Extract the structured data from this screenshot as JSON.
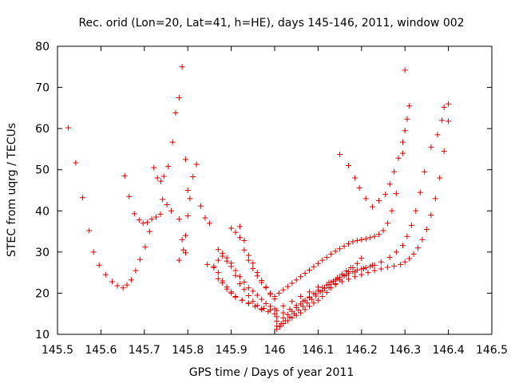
{
  "chart_data": {
    "type": "scatter",
    "title": "Rec. orid (Lon=20, Lat=41, h=HE), days 145-146, 2011, window 002",
    "xlabel": "GPS time / Days of year 2011",
    "ylabel": "STEC from uqrg / TECUs",
    "xlim": [
      145.5,
      146.5
    ],
    "ylim": [
      10,
      80
    ],
    "xticks": [
      "145.5",
      "145.6",
      "145.7",
      "145.8",
      "145.9",
      "146",
      "146.1",
      "146.2",
      "146.3",
      "146.4",
      "146.5"
    ],
    "yticks": [
      "10",
      "20",
      "30",
      "40",
      "50",
      "60",
      "70",
      "80"
    ],
    "grid": false,
    "marker": "+",
    "color": "#dd0000",
    "series": [
      {
        "x": [
          145.525,
          145.542,
          145.558,
          145.573,
          145.583,
          145.596,
          145.611,
          145.626,
          145.638,
          145.651,
          145.66,
          145.67,
          145.68,
          145.69,
          145.655,
          145.665,
          145.677,
          145.688,
          145.697,
          145.707,
          145.717,
          145.727,
          145.737,
          145.742,
          145.752,
          145.762,
          145.702,
          145.712,
          145.722,
          145.73,
          145.738,
          145.745,
          145.755,
          145.765,
          145.772,
          145.78,
          145.787,
          145.795,
          145.8,
          145.78,
          145.787,
          145.795,
          145.78,
          145.79,
          145.795,
          145.8,
          145.805,
          145.812,
          145.82,
          145.83,
          145.84,
          145.85,
          145.86,
          145.87,
          145.88,
          145.89,
          145.9,
          145.91,
          145.92,
          145.93,
          145.94,
          145.95,
          145.96,
          145.97,
          145.98,
          145.99,
          146.0,
          145.845,
          145.86,
          145.87,
          145.88,
          145.89,
          145.9,
          145.91,
          145.925,
          145.94,
          145.955,
          145.97,
          145.87,
          145.88,
          145.89,
          145.9,
          145.91,
          145.92,
          145.93,
          145.94,
          145.95,
          145.96,
          145.975,
          145.99,
          145.87,
          145.88,
          145.89,
          145.9,
          145.91,
          145.925,
          145.94,
          145.955,
          145.97,
          145.985,
          146.0,
          145.9,
          145.91,
          145.92,
          145.93,
          145.94,
          145.95,
          145.96,
          145.97,
          145.98,
          145.99,
          145.92,
          145.93,
          145.94,
          145.95,
          145.96,
          145.97,
          145.98,
          145.99,
          146.0,
          146.005,
          146.012,
          146.02,
          146.03,
          146.04,
          146.05,
          146.06,
          146.07,
          146.08,
          146.09,
          146.1,
          146.11,
          146.12,
          146.13,
          146.14,
          146.15,
          146.16,
          146.17,
          146.18,
          146.19,
          146.2,
          146.005,
          146.015,
          146.025,
          146.035,
          146.045,
          146.055,
          146.065,
          146.075,
          146.085,
          146.095,
          146.105,
          146.115,
          146.125,
          146.135,
          146.145,
          146.155,
          146.165,
          146.175,
          146.005,
          146.02,
          146.03,
          146.04,
          146.05,
          146.06,
          146.07,
          146.08,
          146.09,
          146.1,
          146.11,
          146.12,
          146.13,
          146.14,
          146.15,
          146.16,
          146.17,
          146.18,
          146.19,
          146.2,
          146.21,
          146.22,
          146.23,
          146.005,
          146.02,
          146.035,
          146.05,
          146.065,
          146.08,
          146.095,
          146.11,
          146.125,
          146.14,
          146.155,
          146.17,
          146.185,
          146.2,
          146.215,
          146.23,
          146.245,
          146.26,
          146.275,
          146.29,
          146.3,
          146.31,
          146.32,
          146.33,
          146.34,
          146.35,
          146.36,
          146.37,
          146.38,
          146.39,
          146.4,
          146.005,
          146.02,
          146.04,
          146.06,
          146.08,
          146.1,
          146.125,
          146.145,
          146.165,
          146.185,
          146.205,
          146.225,
          146.245,
          146.265,
          146.28,
          146.295,
          146.305,
          146.315,
          146.325,
          146.335,
          146.345,
          146.36,
          146.375,
          146.385,
          146.39,
          146.4,
          146.15,
          146.17,
          146.185,
          146.195,
          146.21,
          146.225,
          146.24,
          146.255,
          146.265,
          146.275,
          146.285,
          146.295,
          146.3,
          146.305,
          146.31,
          146.3,
          146.295,
          146.28,
          146.27,
          146.26,
          146.25,
          146.24,
          146.23,
          146.22,
          146.21,
          146.2,
          146.19,
          146.18,
          146.17,
          146.16,
          146.15,
          146.14,
          146.13,
          146.12,
          146.11,
          146.1,
          146.09,
          146.08,
          146.07,
          146.06,
          146.05,
          146.04,
          146.03,
          146.02,
          146.01,
          146.0
        ],
        "y": [
          60.2,
          51.7,
          43.2,
          35.2,
          30.0,
          26.8,
          24.5,
          22.8,
          21.8,
          21.3,
          22.0,
          23.2,
          25.5,
          28.2,
          48.5,
          43.5,
          39.3,
          37.8,
          37.0,
          37.2,
          38.0,
          38.5,
          39.2,
          42.8,
          41.5,
          40.0,
          31.2,
          35.0,
          50.5,
          48.0,
          47.2,
          48.4,
          50.8,
          56.7,
          63.8,
          67.5,
          75.0,
          52.5,
          45.0,
          38.0,
          33.0,
          29.8,
          28.0,
          30.5,
          34.0,
          38.8,
          43.0,
          48.3,
          51.3,
          41.2,
          38.3,
          37.0,
          26.5,
          28.0,
          29.7,
          28.6,
          27.3,
          25.5,
          24.0,
          22.7,
          21.3,
          20.5,
          19.5,
          18.5,
          17.5,
          16.8,
          16.2,
          27.0,
          26.2,
          23.5,
          22.5,
          21.0,
          20.0,
          19.0,
          18.3,
          17.5,
          16.8,
          16.2,
          30.6,
          29.0,
          27.8,
          26.5,
          24.3,
          22.3,
          20.9,
          19.4,
          18.0,
          17.0,
          16.3,
          15.9,
          25.0,
          23.0,
          21.5,
          20.3,
          19.2,
          18.3,
          17.6,
          16.8,
          16.0,
          15.5,
          15.0,
          35.8,
          34.8,
          33.5,
          30.5,
          28.0,
          26.0,
          24.2,
          22.6,
          21.3,
          20.0,
          36.2,
          32.8,
          29.2,
          27.3,
          25.0,
          23.1,
          21.5,
          19.7,
          18.6,
          11.2,
          11.9,
          12.6,
          13.3,
          14.0,
          14.6,
          15.2,
          16.0,
          16.8,
          17.6,
          18.3,
          19.2,
          20.2,
          21.3,
          22.3,
          23.2,
          24.2,
          25.2,
          26.2,
          27.2,
          28.5,
          12.0,
          12.6,
          13.3,
          14.2,
          15.0,
          15.9,
          16.8,
          17.6,
          18.5,
          19.3,
          20.3,
          21.2,
          22.1,
          22.9,
          23.8,
          24.6,
          25.4,
          26.2,
          13.2,
          14.0,
          14.8,
          15.6,
          16.5,
          17.4,
          18.3,
          19.1,
          19.9,
          20.7,
          21.4,
          22.0,
          22.6,
          23.2,
          23.8,
          24.3,
          24.8,
          25.2,
          25.6,
          25.9,
          26.2,
          26.5,
          26.8,
          14.3,
          15.2,
          16.1,
          17.0,
          18.0,
          18.9,
          19.8,
          20.6,
          21.4,
          22.1,
          22.8,
          23.4,
          24.0,
          24.5,
          25.0,
          25.5,
          25.9,
          26.3,
          26.6,
          27.0,
          27.6,
          28.4,
          29.5,
          31.0,
          33.0,
          35.5,
          39.0,
          43.0,
          48.0,
          54.5,
          61.8,
          15.8,
          16.9,
          18.0,
          19.2,
          20.3,
          21.5,
          22.6,
          23.5,
          24.4,
          25.2,
          26.0,
          26.8,
          27.6,
          28.7,
          30.0,
          31.6,
          33.8,
          36.5,
          40.0,
          44.5,
          49.5,
          55.5,
          58.5,
          62.0,
          65.2,
          66.0,
          53.7,
          51.0,
          48.0,
          45.6,
          43.0,
          41.0,
          42.5,
          44.0,
          46.5,
          49.5,
          52.8,
          56.7,
          59.5,
          62.3,
          65.5,
          74.2,
          54.0,
          44.2,
          40.0,
          37.0,
          35.2,
          34.3,
          33.8,
          33.5,
          33.2,
          33.0,
          32.8,
          32.5,
          32.0,
          31.4,
          30.8,
          30.2,
          29.5,
          28.7,
          28.0,
          27.2,
          26.4,
          25.6,
          24.8,
          24.0,
          23.2,
          22.4,
          21.6,
          20.8,
          20.0,
          19.2
        ]
      }
    ]
  }
}
